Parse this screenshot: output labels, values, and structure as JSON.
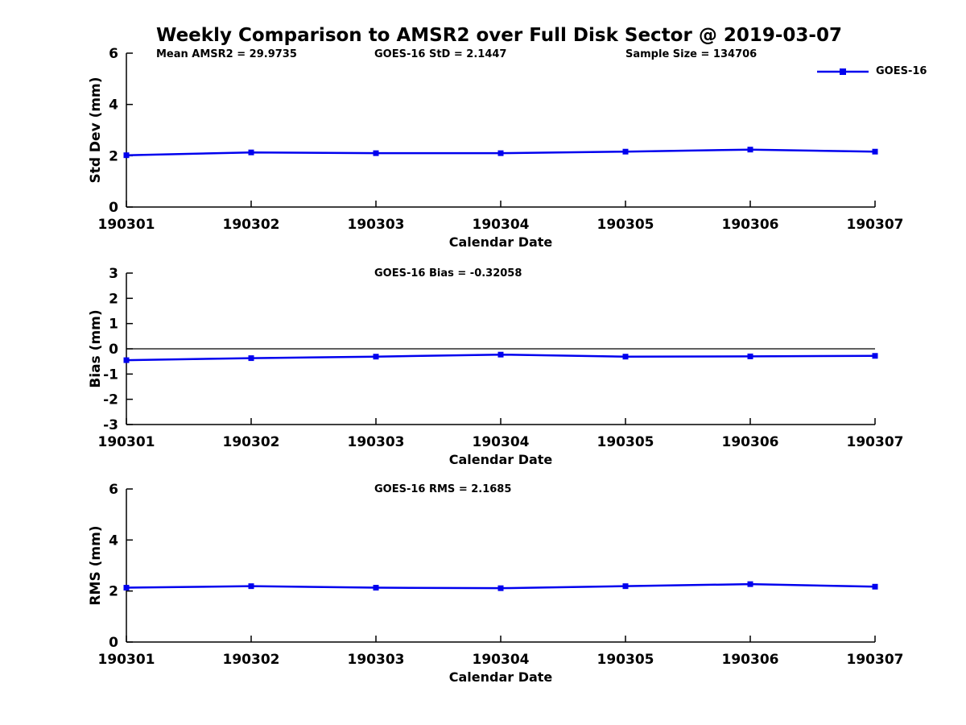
{
  "figure": {
    "title": "Weekly Comparison to AMSR2 over Full Disk Sector @ 2019-03-07",
    "annotations": {
      "mean_amsr2": "Mean AMSR2 = 29.9735",
      "goes16_std": "GOES-16 StD = 2.1447",
      "sample_size": "Sample Size = 134706"
    },
    "legend": {
      "label": "GOES-16"
    },
    "colors": {
      "series": "#0000ee",
      "axis": "#000000",
      "zero_line": "#000000",
      "background": "#ffffff"
    }
  },
  "chart_data": [
    {
      "type": "line",
      "title": "",
      "categories": [
        "190301",
        "190302",
        "190303",
        "190304",
        "190305",
        "190306",
        "190307"
      ],
      "series": [
        {
          "name": "GOES-16",
          "color": "#0000ee",
          "marker": "square",
          "values": [
            2.02,
            2.13,
            2.1,
            2.1,
            2.16,
            2.24,
            2.16
          ]
        }
      ],
      "xlabel": "Calendar Date",
      "ylabel": "Std Dev (mm)",
      "ylim": [
        0,
        6
      ],
      "yticks": [
        0,
        2,
        4,
        6
      ],
      "zero_line": false,
      "grid": false,
      "legend_position": "top-right"
    },
    {
      "type": "line",
      "title": "GOES-16 Bias  = -0.32058",
      "categories": [
        "190301",
        "190302",
        "190303",
        "190304",
        "190305",
        "190306",
        "190307"
      ],
      "series": [
        {
          "name": "GOES-16",
          "color": "#0000ee",
          "marker": "square",
          "values": [
            -0.45,
            -0.37,
            -0.31,
            -0.23,
            -0.31,
            -0.3,
            -0.28
          ]
        }
      ],
      "xlabel": "Calendar Date",
      "ylabel": "Bias (mm)",
      "ylim": [
        -3,
        3
      ],
      "yticks": [
        -3,
        -2,
        -1,
        0,
        1,
        2,
        3
      ],
      "zero_line": true,
      "grid": false,
      "legend_position": "none"
    },
    {
      "type": "line",
      "title": "GOES-16 RMS = 2.1685",
      "categories": [
        "190301",
        "190302",
        "190303",
        "190304",
        "190305",
        "190306",
        "190307"
      ],
      "series": [
        {
          "name": "GOES-16",
          "color": "#0000ee",
          "marker": "square",
          "values": [
            2.13,
            2.19,
            2.13,
            2.11,
            2.19,
            2.27,
            2.17
          ]
        }
      ],
      "xlabel": "Calendar Date",
      "ylabel": "RMS (mm)",
      "ylim": [
        0,
        6
      ],
      "yticks": [
        0,
        2,
        4,
        6
      ],
      "zero_line": false,
      "grid": false,
      "legend_position": "none"
    }
  ]
}
